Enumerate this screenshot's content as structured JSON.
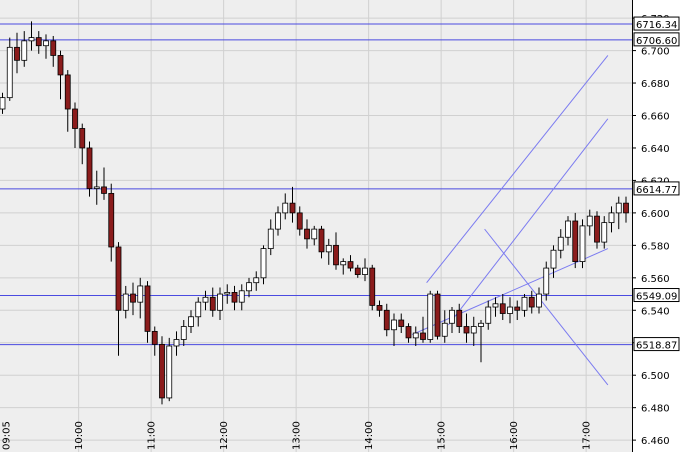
{
  "chart_data": {
    "type": "candlestick",
    "x_ticks": [
      "09:05",
      "10:00",
      "11:00",
      "12:00",
      "13:00",
      "14:00",
      "15:00",
      "16:00",
      "17:00"
    ],
    "y_ticks": [
      "6.460",
      "6.480",
      "6.500",
      "6.520",
      "6.540",
      "6.560",
      "6.580",
      "6.600",
      "6.620",
      "6.640",
      "6.660",
      "6.680",
      "6.700",
      "6.720"
    ],
    "ylim": [
      6.457,
      6.725
    ],
    "levels": [
      {
        "label": "6716.34",
        "value": 6.71634
      },
      {
        "label": "6706.60",
        "value": 6.7066
      },
      {
        "label": "6614.77",
        "value": 6.61477
      },
      {
        "label": "6549.09",
        "value": 6.54909
      },
      {
        "label": "6518.87",
        "value": 6.51887
      }
    ],
    "trend_lines": [
      {
        "from": [
          58.5,
          6.557
        ],
        "to": [
          83.5,
          6.697
        ]
      },
      {
        "from": [
          61.5,
          6.531
        ],
        "to": [
          83.5,
          6.658
        ]
      },
      {
        "from": [
          56.5,
          6.525
        ],
        "to": [
          83.5,
          6.578
        ]
      },
      {
        "from": [
          66.5,
          6.59
        ],
        "to": [
          83.5,
          6.494
        ]
      }
    ],
    "candles": [
      [
        6.664,
        6.674,
        6.661,
        6.671
      ],
      [
        6.671,
        6.708,
        6.669,
        6.702
      ],
      [
        6.702,
        6.711,
        6.686,
        6.694
      ],
      [
        6.694,
        6.712,
        6.69,
        6.706
      ],
      [
        6.706,
        6.718,
        6.7,
        6.708
      ],
      [
        6.708,
        6.712,
        6.698,
        6.703
      ],
      [
        6.703,
        6.71,
        6.695,
        6.706
      ],
      [
        6.706,
        6.709,
        6.69,
        6.697
      ],
      [
        6.697,
        6.7,
        6.67,
        6.685
      ],
      [
        6.685,
        6.688,
        6.65,
        6.664
      ],
      [
        6.664,
        6.668,
        6.64,
        6.652
      ],
      [
        6.652,
        6.655,
        6.63,
        6.64
      ],
      [
        6.64,
        6.644,
        6.61,
        6.615
      ],
      [
        6.615,
        6.626,
        6.605,
        6.616
      ],
      [
        6.616,
        6.628,
        6.608,
        6.612
      ],
      [
        6.612,
        6.618,
        6.57,
        6.579
      ],
      [
        6.579,
        6.582,
        6.512,
        6.54
      ],
      [
        6.54,
        6.555,
        6.535,
        6.55
      ],
      [
        6.55,
        6.557,
        6.537,
        6.545
      ],
      [
        6.545,
        6.56,
        6.535,
        6.555
      ],
      [
        6.555,
        6.558,
        6.52,
        6.527
      ],
      [
        6.527,
        6.53,
        6.512,
        6.519
      ],
      [
        6.519,
        6.524,
        6.482,
        6.486
      ],
      [
        6.486,
        6.523,
        6.484,
        6.518
      ],
      [
        6.518,
        6.527,
        6.512,
        6.522
      ],
      [
        6.522,
        6.534,
        6.518,
        6.53
      ],
      [
        6.53,
        6.54,
        6.526,
        6.536
      ],
      [
        6.536,
        6.548,
        6.53,
        6.545
      ],
      [
        6.545,
        6.552,
        6.54,
        6.548
      ],
      [
        6.548,
        6.554,
        6.536,
        6.54
      ],
      [
        6.54,
        6.554,
        6.534,
        6.55
      ],
      [
        6.55,
        6.556,
        6.544,
        6.551
      ],
      [
        6.551,
        6.555,
        6.54,
        6.545
      ],
      [
        6.545,
        6.556,
        6.54,
        6.552
      ],
      [
        6.552,
        6.56,
        6.548,
        6.557
      ],
      [
        6.557,
        6.564,
        6.552,
        6.56
      ],
      [
        6.56,
        6.58,
        6.556,
        6.578
      ],
      [
        6.578,
        6.596,
        6.574,
        6.59
      ],
      [
        6.59,
        6.604,
        6.586,
        6.6
      ],
      [
        6.6,
        6.612,
        6.596,
        6.606
      ],
      [
        6.606,
        6.616,
        6.594,
        6.6
      ],
      [
        6.6,
        6.604,
        6.586,
        6.59
      ],
      [
        6.59,
        6.596,
        6.578,
        6.584
      ],
      [
        6.584,
        6.592,
        6.58,
        6.59
      ],
      [
        6.59,
        6.592,
        6.572,
        6.576
      ],
      [
        6.576,
        6.584,
        6.568,
        6.58
      ],
      [
        6.58,
        6.588,
        6.565,
        6.568
      ],
      [
        6.568,
        6.572,
        6.562,
        6.57
      ],
      [
        6.57,
        6.574,
        6.564,
        6.566
      ],
      [
        6.566,
        6.568,
        6.56,
        6.562
      ],
      [
        6.562,
        6.572,
        6.558,
        6.566
      ],
      [
        6.566,
        6.568,
        6.54,
        6.543
      ],
      [
        6.543,
        6.546,
        6.536,
        6.54
      ],
      [
        6.54,
        6.544,
        6.524,
        6.528
      ],
      [
        6.528,
        6.538,
        6.518,
        6.534
      ],
      [
        6.534,
        6.538,
        6.526,
        6.53
      ],
      [
        6.53,
        6.532,
        6.52,
        6.523
      ],
      [
        6.523,
        6.53,
        6.518,
        6.526
      ],
      [
        6.526,
        6.536,
        6.52,
        6.522
      ],
      [
        6.522,
        6.552,
        6.52,
        6.55
      ],
      [
        6.55,
        6.552,
        6.522,
        6.524
      ],
      [
        6.524,
        6.54,
        6.52,
        6.532
      ],
      [
        6.532,
        6.542,
        6.526,
        6.54
      ],
      [
        6.54,
        6.544,
        6.526,
        6.53
      ],
      [
        6.53,
        6.538,
        6.52,
        6.526
      ],
      [
        6.526,
        6.536,
        6.518,
        6.53
      ],
      [
        6.53,
        6.534,
        6.508,
        6.532
      ],
      [
        6.532,
        6.546,
        6.528,
        6.542
      ],
      [
        6.542,
        6.548,
        6.536,
        6.544
      ],
      [
        6.544,
        6.55,
        6.534,
        6.538
      ],
      [
        6.538,
        6.548,
        6.532,
        6.542
      ],
      [
        6.542,
        6.546,
        6.534,
        6.54
      ],
      [
        6.54,
        6.55,
        6.536,
        6.548
      ],
      [
        6.548,
        6.552,
        6.538,
        6.542
      ],
      [
        6.542,
        6.554,
        6.538,
        6.55
      ],
      [
        6.55,
        6.57,
        6.546,
        6.566
      ],
      [
        6.566,
        6.58,
        6.56,
        6.577
      ],
      [
        6.577,
        6.59,
        6.572,
        6.585
      ],
      [
        6.585,
        6.598,
        6.58,
        6.595
      ],
      [
        6.595,
        6.6,
        6.566,
        6.57
      ],
      [
        6.57,
        6.596,
        6.566,
        6.592
      ],
      [
        6.592,
        6.602,
        6.586,
        6.598
      ],
      [
        6.598,
        6.601,
        6.578,
        6.582
      ],
      [
        6.582,
        6.598,
        6.578,
        6.594
      ],
      [
        6.594,
        6.604,
        6.588,
        6.6
      ],
      [
        6.6,
        6.61,
        6.59,
        6.606
      ],
      [
        6.606,
        6.61,
        6.594,
        6.6
      ],
      [
        6.6,
        6.614,
        6.595,
        6.611
      ],
      [
        6.611,
        6.64,
        6.608,
        6.637
      ],
      [
        6.637,
        6.642,
        6.632,
        6.636
      ],
      [
        6.636,
        6.64,
        6.624,
        6.628
      ],
      [
        6.628,
        6.632,
        6.612,
        6.616
      ],
      [
        6.616,
        6.628,
        6.612,
        6.62
      ],
      [
        6.62,
        6.64,
        6.616,
        6.638
      ],
      [
        6.638,
        6.662,
        6.634,
        6.655
      ],
      [
        6.655,
        6.668,
        6.65,
        6.664
      ],
      [
        6.664,
        6.666,
        6.658,
        6.661
      ]
    ]
  },
  "colors": {
    "up": "#ffffff",
    "down": "#8b1c1c",
    "candle_outline": "#000000",
    "level_line": "#4a4ae0",
    "trend_line": "#7b7bf0",
    "grid": "#d0d0d0",
    "plot_bg": "#eeeeee"
  }
}
